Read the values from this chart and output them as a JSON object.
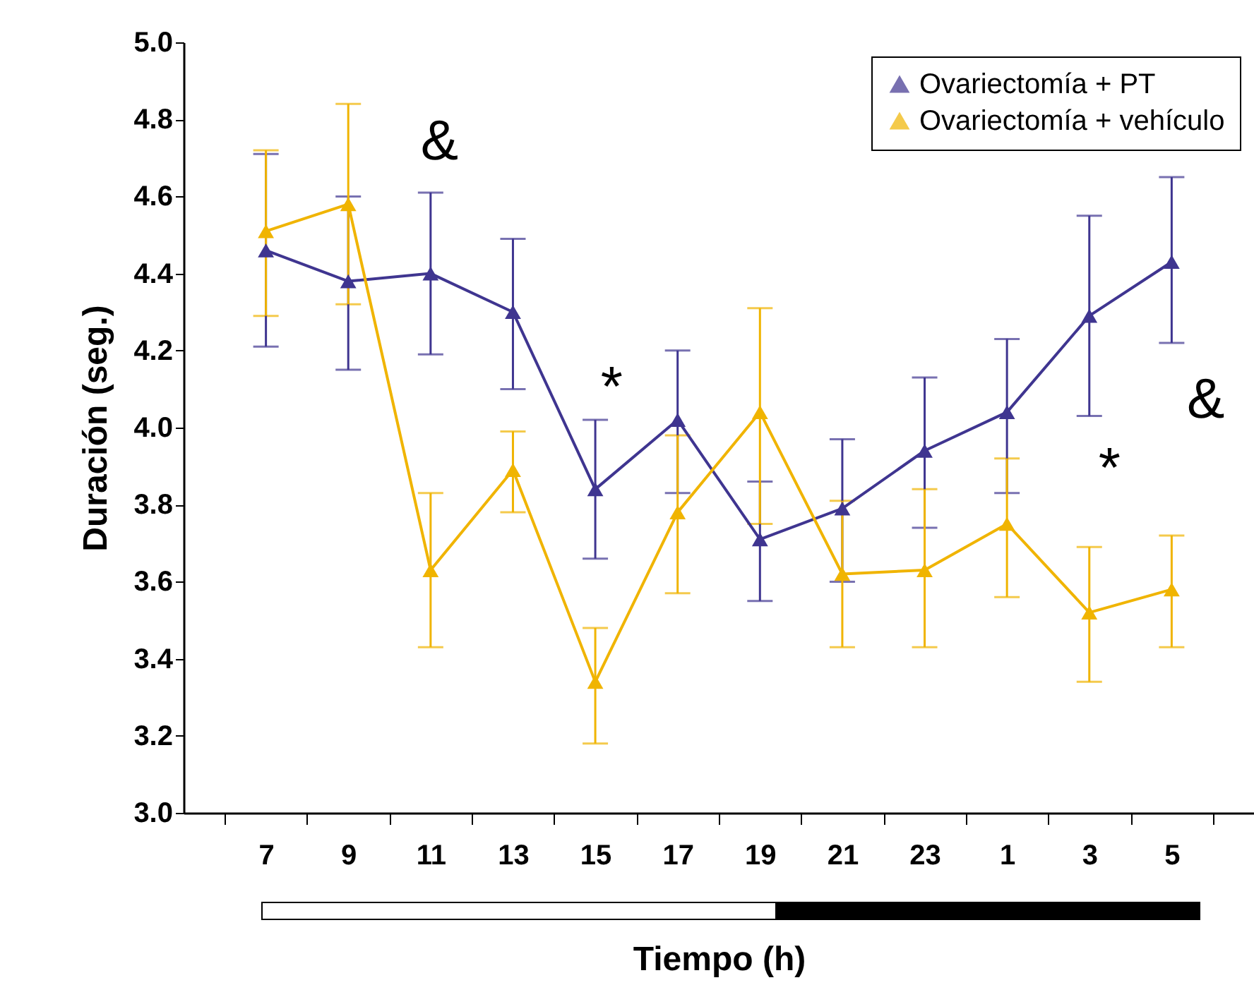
{
  "chart_data": {
    "type": "line",
    "xlabel": "Tiempo (h)",
    "ylabel": "Duración (seg.)",
    "categories": [
      "7",
      "9",
      "11",
      "13",
      "15",
      "17",
      "19",
      "21",
      "23",
      "1",
      "3",
      "5"
    ],
    "series": [
      {
        "name": "Ovariectomía + PT",
        "color": "#3f3590",
        "values": [
          4.46,
          4.38,
          4.4,
          4.3,
          3.84,
          4.02,
          3.71,
          3.79,
          3.94,
          4.04,
          4.29,
          4.43
        ],
        "errors": [
          [
            4.21,
            4.71
          ],
          [
            4.15,
            4.6
          ],
          [
            4.19,
            4.61
          ],
          [
            4.1,
            4.49
          ],
          [
            3.66,
            4.02
          ],
          [
            3.83,
            4.2
          ],
          [
            3.55,
            3.86
          ],
          [
            3.6,
            3.97
          ],
          [
            3.74,
            4.13
          ],
          [
            3.83,
            4.23
          ],
          [
            4.03,
            4.55
          ],
          [
            4.22,
            4.65
          ]
        ]
      },
      {
        "name": "Ovariectomía + vehículo",
        "color": "#f0b400",
        "values": [
          4.51,
          4.58,
          3.63,
          3.89,
          3.34,
          3.78,
          4.04,
          3.62,
          3.63,
          3.75,
          3.52,
          3.58
        ],
        "errors": [
          [
            4.29,
            4.72
          ],
          [
            4.32,
            4.84
          ],
          [
            3.43,
            3.83
          ],
          [
            3.78,
            3.99
          ],
          [
            3.18,
            3.48
          ],
          [
            3.57,
            3.98
          ],
          [
            3.75,
            4.31
          ],
          [
            3.43,
            3.81
          ],
          [
            3.43,
            3.84
          ],
          [
            3.56,
            3.92
          ],
          [
            3.34,
            3.69
          ],
          [
            3.43,
            3.72
          ]
        ]
      }
    ],
    "ylim": [
      3.0,
      5.0
    ],
    "yticks": [
      {
        "value": 3.0,
        "label": "3.0"
      },
      {
        "value": 3.2,
        "label": "3.2"
      },
      {
        "value": 3.4,
        "label": "3.4"
      },
      {
        "value": 3.6,
        "label": "3.6"
      },
      {
        "value": 3.8,
        "label": "3.8"
      },
      {
        "value": 4.0,
        "label": "4.0"
      },
      {
        "value": 4.2,
        "label": "4.2"
      },
      {
        "value": 4.4,
        "label": "4.4"
      },
      {
        "value": 4.6,
        "label": "4.6"
      },
      {
        "value": 4.8,
        "label": "4.8"
      },
      {
        "value": 5.0,
        "label": "5.0"
      }
    ],
    "annotations": [
      "&",
      "*",
      "*",
      "&"
    ],
    "marker": "triangle",
    "grid": false,
    "legend": "top right"
  }
}
